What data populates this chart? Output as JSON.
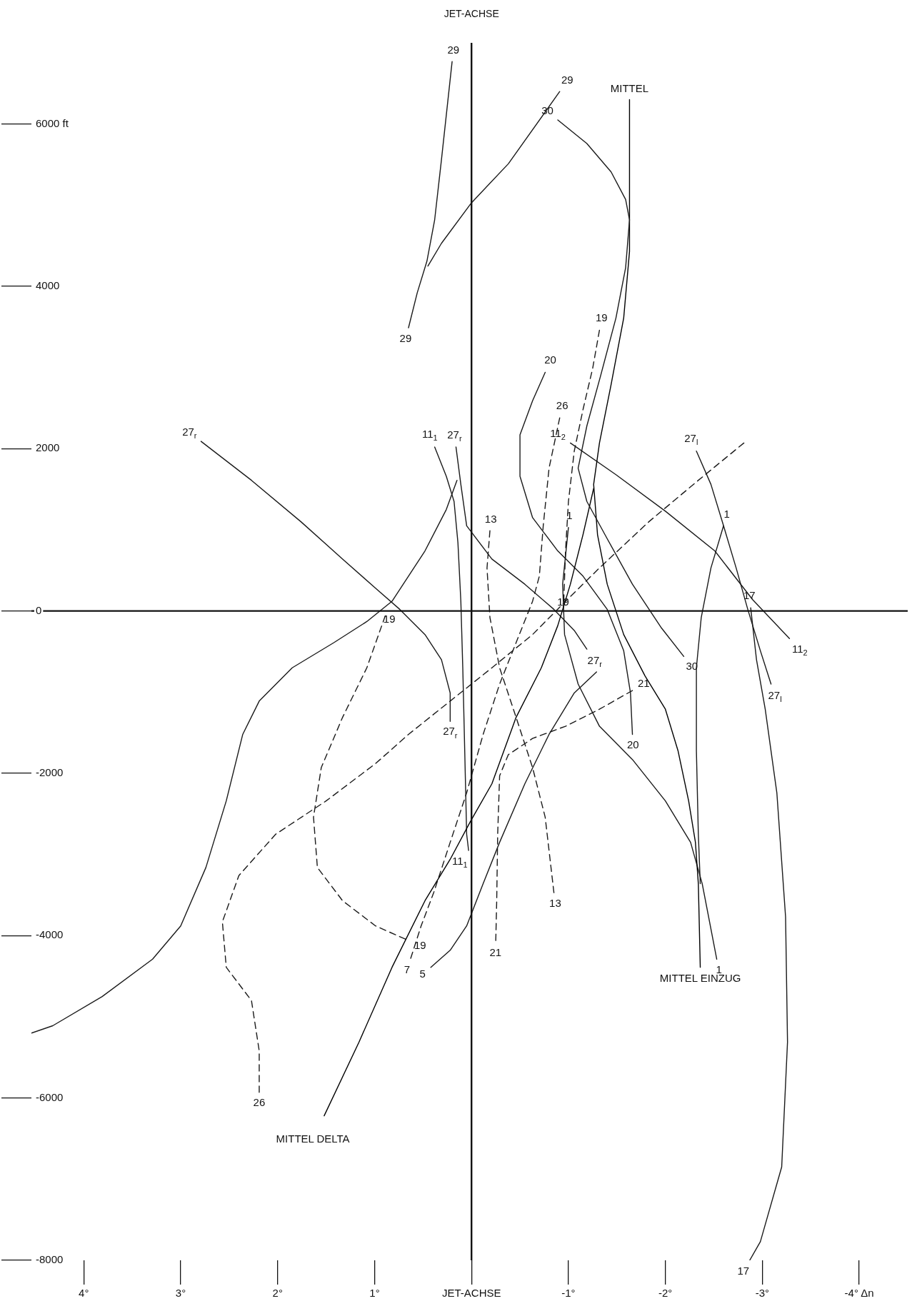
{
  "chart_data": {
    "type": "line",
    "xlim": [
      4.54,
      -4.5
    ],
    "ylim": [
      -8000,
      7000
    ],
    "xticks": [
      {
        "value": 4,
        "label": "4°"
      },
      {
        "value": 3,
        "label": "3°"
      },
      {
        "value": 2,
        "label": "2°"
      },
      {
        "value": 1,
        "label": "1°"
      },
      {
        "value": 0,
        "label": "JET-ACHSE"
      },
      {
        "value": -1,
        "label": "-1°"
      },
      {
        "value": -2,
        "label": "-2°"
      },
      {
        "value": -3,
        "label": "-3°"
      },
      {
        "value": -4,
        "label": "-4° Δn"
      }
    ],
    "yticks": [
      -8000,
      -6000,
      -4000,
      -2000,
      0,
      2000,
      4000,
      {
        "value": 6000,
        "label": "6000 ft"
      }
    ],
    "grid": false,
    "legend": false,
    "marker": "none",
    "ref_lines": [
      {
        "axis": "x",
        "value": 0,
        "label": "JET-ACHSE"
      },
      {
        "axis": "y",
        "value": 0
      }
    ],
    "series": [
      {
        "color": "#1a1a1a",
        "line_style": "solid",
        "x": [
          0.2,
          0.31,
          0.38,
          0.46,
          0.56,
          0.65
        ],
        "values": [
          6770,
          5560,
          4820,
          4310,
          3920,
          3490
        ]
      },
      {
        "color": "#1a1a1a",
        "line_style": "solid",
        "x": [
          0.45,
          0.31,
          0.0,
          -0.38,
          -0.91
        ],
        "values": [
          4250,
          4530,
          5030,
          5510,
          6400
        ]
      },
      {
        "color": "#1a1a1a",
        "line_style": "solid",
        "x": [
          -0.89,
          -1.19,
          -1.44,
          -1.59,
          -1.63,
          -1.59,
          -1.49,
          -1.33,
          -1.19,
          -1.1,
          -1.19,
          -1.4,
          -1.66,
          -1.96,
          -2.19
        ],
        "values": [
          6050,
          5760,
          5410,
          5070,
          4820,
          4230,
          3610,
          2890,
          2280,
          1760,
          1350,
          890,
          330,
          -210,
          -560
        ]
      },
      {
        "color": "#000000",
        "line_style": "solid",
        "x": [
          -1.63,
          -1.63,
          -1.57,
          -1.44,
          -1.32,
          -1.26,
          -1.3,
          -1.4,
          -1.57,
          -1.79,
          -2.0,
          -2.13,
          -2.24,
          -2.31,
          -2.34,
          -2.36
        ],
        "values": [
          6300,
          4430,
          3610,
          2790,
          2070,
          1560,
          940,
          330,
          -290,
          -800,
          -1210,
          -1720,
          -2340,
          -2850,
          -3360,
          -4390
        ]
      },
      {
        "color": "#000000",
        "line_style": "solid",
        "x": [
          1.52,
          1.16,
          0.82,
          0.48,
          0.22,
          0.01,
          -0.21,
          -0.46,
          -0.72,
          -0.89,
          -1.02,
          -1.15,
          -1.26
        ],
        "values": [
          -6220,
          -5310,
          -4390,
          -3570,
          -3060,
          -2590,
          -2130,
          -1310,
          -700,
          -180,
          330,
          940,
          1510
        ]
      },
      {
        "color": "#1a1a1a",
        "line_style": "solid",
        "x": [
          2.79,
          2.27,
          1.76,
          1.33,
          0.99,
          0.74,
          0.48,
          0.31,
          0.22,
          0.22
        ],
        "values": [
          2090,
          1610,
          1100,
          640,
          280,
          20,
          -290,
          -600,
          -1010,
          -1360
        ]
      },
      {
        "color": "#1a1a1a",
        "line_style": "solid",
        "x": [
          0.16,
          0.11,
          0.05,
          -0.21,
          -0.55,
          -0.85,
          -1.06,
          -1.19
        ],
        "values": [
          2020,
          1560,
          1050,
          640,
          330,
          20,
          -240,
          -470
        ]
      },
      {
        "color": "#1a1a1a",
        "line_style": "solid",
        "x": [
          0.38,
          0.26,
          0.18,
          0.14,
          0.11,
          0.09,
          0.07,
          0.05,
          0.03
        ],
        "values": [
          2020,
          1660,
          1350,
          840,
          120,
          -700,
          -1720,
          -2750,
          -2950
        ]
      },
      {
        "color": "#1a1a1a",
        "line_style": "solid",
        "x": [
          -1.02,
          -1.49,
          -2.0,
          -2.51,
          -2.9,
          -3.28
        ],
        "values": [
          2070,
          1680,
          1230,
          740,
          140,
          -340
        ]
      },
      {
        "color": "#1a1a1a",
        "line_style": "solid",
        "x": [
          -2.32,
          -2.47,
          -2.6,
          -2.73,
          -2.85,
          -2.98,
          -3.09
        ],
        "values": [
          1970,
          1560,
          1050,
          530,
          20,
          -490,
          -900
        ]
      },
      {
        "color": "#1a1a1a",
        "line_style": "solid",
        "x": [
          -2.88,
          -2.94,
          -3.03,
          -3.15,
          -3.24,
          -3.26,
          -3.2,
          -2.98,
          -2.87
        ],
        "values": [
          40,
          -600,
          -1210,
          -2240,
          -3770,
          -5310,
          -6850,
          -7770,
          -8000
        ]
      },
      {
        "color": "#1a1a1a",
        "line_style": "solid",
        "x": [
          -1.0,
          -0.94,
          -0.96,
          -1.1,
          -1.32,
          -1.66,
          -2.0,
          -2.26,
          -2.38,
          -2.53
        ],
        "values": [
          1030,
          330,
          -290,
          -900,
          -1420,
          -1830,
          -2340,
          -2850,
          -3360,
          -4290
        ]
      },
      {
        "color": "#1a1a1a",
        "line_style": "solid",
        "x": [
          -2.6,
          -2.47,
          -2.37,
          -2.32,
          -2.32,
          -2.34,
          -2.36
        ],
        "values": [
          1050,
          530,
          -80,
          -700,
          -1720,
          -2750,
          -3360
        ]
      },
      {
        "color": "#1a1a1a",
        "line_style": "solid",
        "x": [
          -0.76,
          -0.63,
          -0.5,
          -0.5,
          -0.63,
          -0.89,
          -1.15,
          -1.4,
          -1.57,
          -1.64,
          -1.66
        ],
        "values": [
          2940,
          2590,
          2170,
          1660,
          1150,
          740,
          430,
          20,
          -490,
          -1010,
          -1520
        ]
      },
      {
        "color": "#1a1a1a",
        "line_style": "solid",
        "x": [
          0.42,
          0.22,
          0.05,
          -0.12,
          -0.29,
          -0.55,
          -0.8,
          -1.06,
          -1.29
        ],
        "values": [
          -4390,
          -4180,
          -3880,
          -3360,
          -2850,
          -2130,
          -1520,
          -1010,
          -750
        ]
      },
      {
        "color": "#1a1a1a",
        "line_style": "solid",
        "x": [
          4.54,
          4.32,
          3.81,
          3.29,
          3.0,
          2.74,
          2.53,
          2.36,
          2.19,
          1.85,
          1.42,
          1.08,
          0.82,
          0.48,
          0.26,
          0.15
        ],
        "values": [
          -5200,
          -5110,
          -4750,
          -4290,
          -3880,
          -3160,
          -2340,
          -1520,
          -1110,
          -700,
          -390,
          -130,
          120,
          740,
          1250,
          1610
        ]
      },
      {
        "color": "#1a1a1a",
        "line_style": "dashed",
        "x": [
          -1.32,
          -1.25,
          -1.15,
          -1.06,
          -1.0,
          -0.97,
          -0.95
        ],
        "values": [
          3460,
          2990,
          2480,
          1970,
          1350,
          740,
          70
        ]
      },
      {
        "color": "#1a1a1a",
        "line_style": "dashed",
        "x": [
          0.89,
          1.08,
          1.33,
          1.55,
          1.63,
          1.59,
          1.33,
          0.99,
          0.65
        ],
        "values": [
          -60,
          -700,
          -1310,
          -1930,
          -2540,
          -3160,
          -3570,
          -3880,
          -4060
        ]
      },
      {
        "color": "#1a1a1a",
        "line_style": "dashed",
        "x": [
          -2.81,
          -2.34,
          -1.83,
          -1.32,
          -0.97,
          -0.63,
          -0.21,
          0.22,
          0.65,
          0.99,
          1.5,
          2.02,
          2.4,
          2.57,
          2.53,
          2.27,
          2.19,
          2.19
        ],
        "values": [
          2070,
          1610,
          1100,
          530,
          120,
          -290,
          -700,
          -1110,
          -1520,
          -1880,
          -2340,
          -2750,
          -3260,
          -3830,
          -4390,
          -4800,
          -5420,
          -5930
        ]
      },
      {
        "color": "#1a1a1a",
        "line_style": "dashed",
        "x": [
          -0.91,
          -0.8,
          -0.74,
          -0.7,
          -0.63,
          -0.46,
          -0.29,
          -0.12,
          0.05,
          0.22,
          0.39,
          0.52,
          0.63
        ],
        "values": [
          2380,
          1760,
          1050,
          430,
          120,
          -390,
          -900,
          -1520,
          -2240,
          -2850,
          -3470,
          -3880,
          -4290
        ]
      },
      {
        "color": "#1a1a1a",
        "line_style": "dashed",
        "x": [
          -0.19,
          -0.16,
          -0.19,
          -0.29,
          -0.46,
          -0.63,
          -0.76,
          -0.82,
          -0.85
        ],
        "values": [
          990,
          530,
          -80,
          -700,
          -1310,
          -1930,
          -2540,
          -3160,
          -3470
        ]
      },
      {
        "color": "#1a1a1a",
        "line_style": "dashed",
        "x": [
          -1.66,
          -1.32,
          -0.97,
          -0.63,
          -0.38,
          -0.29,
          -0.27,
          -0.26,
          -0.25
        ],
        "values": [
          -980,
          -1210,
          -1420,
          -1570,
          -1770,
          -2030,
          -2750,
          -3570,
          -4080
        ]
      }
    ],
    "annotations": [
      {
        "text": "29",
        "x": 0.2,
        "y": 6770
      },
      {
        "text": "29",
        "x": -0.91,
        "y": 6400
      },
      {
        "text": "29",
        "x": 0.65,
        "y": 3490
      },
      {
        "text": "MITTEL",
        "x": -1.63,
        "y": 6300
      },
      {
        "text": "30",
        "x": -0.89,
        "y": 6050
      },
      {
        "text": "19",
        "x": -1.32,
        "y": 3460
      },
      {
        "text": "20",
        "x": -0.76,
        "y": 2940
      },
      {
        "text": "26",
        "x": -0.91,
        "y": 2380
      },
      {
        "text": "27$_{r}$",
        "x": 2.79,
        "y": 2090
      },
      {
        "text": "11$_{1}$",
        "x": 0.38,
        "y": 2020
      },
      {
        "text": "27$_{r}$",
        "x": 0.16,
        "y": 2020
      },
      {
        "text": "11$_{2}$",
        "x": -1.02,
        "y": 2070
      },
      {
        "text": "27$_{l}$",
        "x": -2.32,
        "y": 1970
      },
      {
        "text": "13",
        "x": -0.19,
        "y": 990
      },
      {
        "text": "1",
        "x": -1.0,
        "y": 1030
      },
      {
        "text": "1",
        "x": -2.6,
        "y": 1050
      },
      {
        "text": "19",
        "x": -0.95,
        "y": 70
      },
      {
        "text": "17",
        "x": -2.88,
        "y": 40
      },
      {
        "text": "19",
        "x": 0.89,
        "y": -60
      },
      {
        "text": "27$_{r}$",
        "x": -1.19,
        "y": -470
      },
      {
        "text": "11$_{2}$",
        "x": -3.28,
        "y": -340
      },
      {
        "text": "30",
        "x": -2.19,
        "y": -560
      },
      {
        "text": "21",
        "x": -1.66,
        "y": -980
      },
      {
        "text": "27$_{l}$",
        "x": -3.09,
        "y": -900
      },
      {
        "text": "27$_{r}$",
        "x": 0.22,
        "y": -1360
      },
      {
        "text": "20",
        "x": -1.66,
        "y": -1520
      },
      {
        "text": "11$_{1}$",
        "x": 0.03,
        "y": -2950
      },
      {
        "text": "13",
        "x": -0.85,
        "y": -3470
      },
      {
        "text": "19",
        "x": 0.65,
        "y": -4060
      },
      {
        "text": "21",
        "x": -0.25,
        "y": -4080
      },
      {
        "text": "7",
        "x": 0.63,
        "y": -4290
      },
      {
        "text": "5",
        "x": 0.42,
        "y": -4390
      },
      {
        "text": "1",
        "x": -2.53,
        "y": -4290
      },
      {
        "text": "MITTEL EINZUG",
        "x": -2.36,
        "y": -4390
      },
      {
        "text": "26",
        "x": 2.19,
        "y": -5930
      },
      {
        "text": "MITTEL DELTA",
        "x": 1.52,
        "y": -6220
      },
      {
        "text": "17",
        "x": -2.87,
        "y": -8000
      }
    ]
  }
}
